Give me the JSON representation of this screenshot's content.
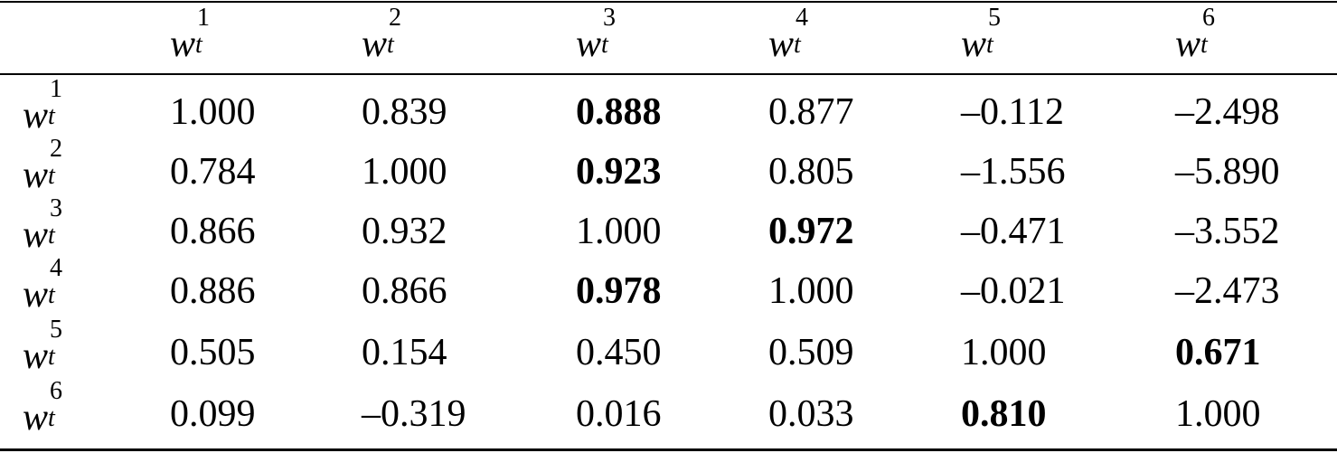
{
  "table": {
    "columns": [
      {
        "base": "w",
        "sub": "t",
        "sup": "1"
      },
      {
        "base": "w",
        "sub": "t",
        "sup": "2"
      },
      {
        "base": "w",
        "sub": "t",
        "sup": "3"
      },
      {
        "base": "w",
        "sub": "t",
        "sup": "4"
      },
      {
        "base": "w",
        "sub": "t",
        "sup": "5"
      },
      {
        "base": "w",
        "sub": "t",
        "sup": "6"
      }
    ],
    "rows": [
      {
        "label": {
          "base": "w",
          "sub": "t",
          "sup": "1"
        },
        "cells": [
          "1.000",
          "0.839",
          "0.888",
          "0.877",
          "–0.112",
          "–2.498"
        ],
        "bold": 2
      },
      {
        "label": {
          "base": "w",
          "sub": "t",
          "sup": "2"
        },
        "cells": [
          "0.784",
          "1.000",
          "0.923",
          "0.805",
          "–1.556",
          "–5.890"
        ],
        "bold": 2
      },
      {
        "label": {
          "base": "w",
          "sub": "t",
          "sup": "3"
        },
        "cells": [
          "0.866",
          "0.932",
          "1.000",
          "0.972",
          "–0.471",
          "–3.552"
        ],
        "bold": 3
      },
      {
        "label": {
          "base": "w",
          "sub": "t",
          "sup": "4"
        },
        "cells": [
          "0.886",
          "0.866",
          "0.978",
          "1.000",
          "–0.021",
          "–2.473"
        ],
        "bold": 2
      },
      {
        "label": {
          "base": "w",
          "sub": "t",
          "sup": "5"
        },
        "cells": [
          "0.505",
          "0.154",
          "0.450",
          "0.509",
          "1.000",
          "0.671"
        ],
        "bold": 5
      },
      {
        "label": {
          "base": "w",
          "sub": "t",
          "sup": "6"
        },
        "cells": [
          "0.099",
          "–0.319",
          "0.016",
          "0.033",
          "0.810",
          "1.000"
        ],
        "bold": 4
      }
    ]
  }
}
